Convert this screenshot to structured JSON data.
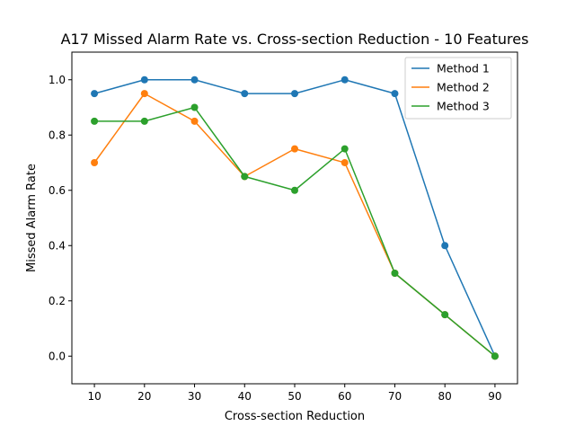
{
  "chart_data": {
    "type": "line",
    "title": "A17 Missed Alarm Rate vs. Cross-section Reduction - 10 Features",
    "xlabel": "Cross-section Reduction",
    "ylabel": "Missed Alarm Rate",
    "x": [
      10,
      20,
      30,
      40,
      50,
      60,
      70,
      80,
      90
    ],
    "xlim": [
      5.5,
      94.5
    ],
    "ylim": [
      -0.1,
      1.1
    ],
    "xticks": [
      10,
      20,
      30,
      40,
      50,
      60,
      70,
      80,
      90
    ],
    "xtick_labels": [
      "10",
      "20",
      "30",
      "40",
      "50",
      "60",
      "70",
      "80",
      "90"
    ],
    "yticks": [
      0.0,
      0.2,
      0.4,
      0.6,
      0.8,
      1.0
    ],
    "ytick_labels": [
      "0.0",
      "0.2",
      "0.4",
      "0.6",
      "0.8",
      "1.0"
    ],
    "grid": false,
    "legend_position": "top-right",
    "series": [
      {
        "name": "Method 1",
        "color": "#1f77b4",
        "values": [
          0.95,
          1.0,
          1.0,
          0.95,
          0.95,
          1.0,
          0.95,
          0.4,
          0.0
        ]
      },
      {
        "name": "Method 2",
        "color": "#ff7f0e",
        "values": [
          0.7,
          0.95,
          0.85,
          0.65,
          0.75,
          0.7,
          0.3,
          0.15,
          0.0
        ]
      },
      {
        "name": "Method 3",
        "color": "#2ca02c",
        "values": [
          0.85,
          0.85,
          0.9,
          0.65,
          0.6,
          0.75,
          0.3,
          0.15,
          0.0
        ]
      }
    ]
  }
}
